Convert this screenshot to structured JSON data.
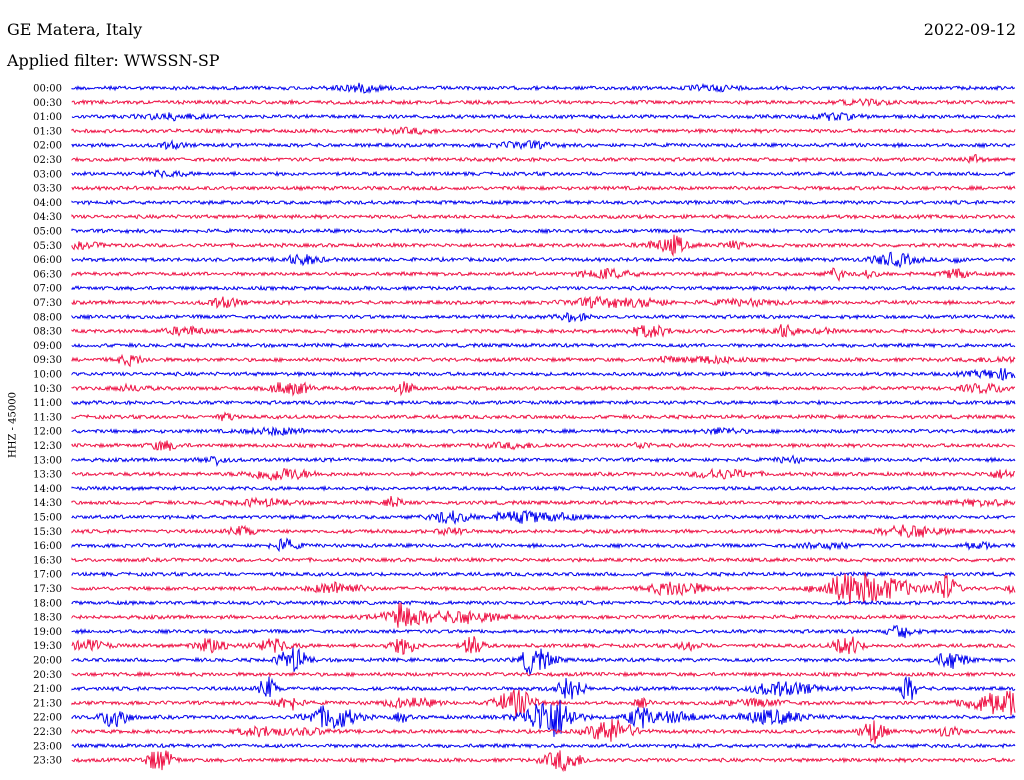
{
  "header": {
    "station": "GE Matera, Italy",
    "date": "2022-09-12",
    "filter": "Applied filter: WWSSN-SP"
  },
  "axis": {
    "ylabel": "HHZ - 45000"
  },
  "colors": {
    "blue": "#0000ee",
    "red": "#ee1144"
  },
  "chart_data": {
    "type": "line",
    "title": "",
    "xlabel": "",
    "ylabel": "HHZ - 45000",
    "rows": [
      "00:00",
      "00:30",
      "01:00",
      "01:30",
      "02:00",
      "02:30",
      "03:00",
      "03:30",
      "04:00",
      "04:30",
      "05:00",
      "05:30",
      "06:00",
      "06:30",
      "07:00",
      "07:30",
      "08:00",
      "08:30",
      "09:00",
      "09:30",
      "10:00",
      "10:30",
      "11:00",
      "11:30",
      "12:00",
      "12:30",
      "13:00",
      "13:30",
      "14:00",
      "14:30",
      "15:00",
      "15:30",
      "16:00",
      "16:30",
      "17:00",
      "17:30",
      "18:00",
      "18:30",
      "19:00",
      "19:30",
      "20:00",
      "20:30",
      "21:00",
      "21:30",
      "22:00",
      "22:30",
      "23:00",
      "23:30"
    ],
    "row_colors": [
      "blue",
      "red"
    ],
    "x_minutes_per_row": 30,
    "grid": false
  }
}
